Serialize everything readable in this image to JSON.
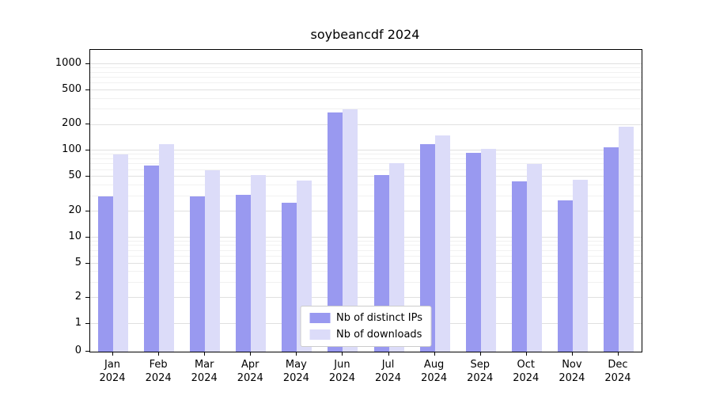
{
  "chart_data": {
    "type": "bar",
    "title": "soybeancdf 2024",
    "x_year_label": "2024",
    "categories": [
      "Jan",
      "Feb",
      "Mar",
      "Apr",
      "May",
      "Jun",
      "Jul",
      "Aug",
      "Sep",
      "Oct",
      "Nov",
      "Dec"
    ],
    "series": [
      {
        "name": "Nb of distinct IPs",
        "color": "#9999f0",
        "values": [
          30,
          68,
          30,
          31,
          25,
          280,
          53,
          120,
          95,
          44,
          27,
          110
        ]
      },
      {
        "name": "Nb of downloads",
        "color": "#dcdcf9",
        "values": [
          90,
          120,
          60,
          53,
          45,
          300,
          72,
          150,
          105,
          70,
          46,
          190
        ]
      }
    ],
    "y_scale": "symlog",
    "ylim": [
      0,
      1000
    ],
    "y_major_ticks": [
      0,
      1,
      2,
      5,
      10,
      20,
      50,
      100,
      200,
      500,
      1000
    ],
    "y_minor_ticks": [
      3,
      4,
      6,
      7,
      8,
      9,
      30,
      40,
      60,
      70,
      80,
      90,
      300,
      400,
      600,
      700,
      800,
      900
    ],
    "grid": "horizontal",
    "legend_position": "bottom-center"
  }
}
